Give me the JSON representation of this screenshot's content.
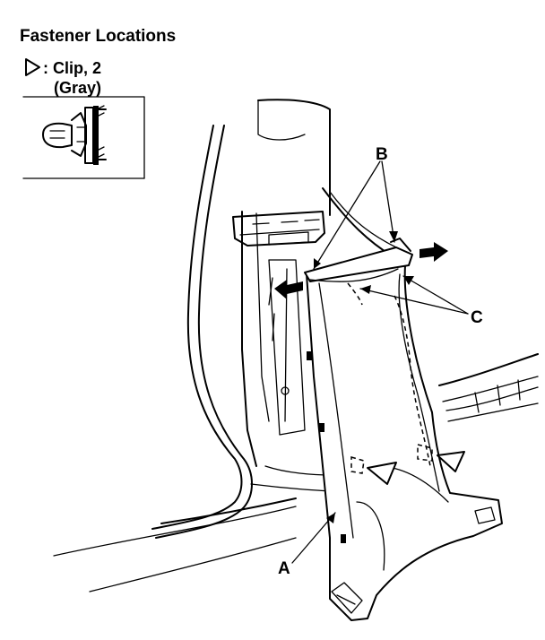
{
  "title": "Fastener Locations",
  "legend": {
    "clip_label": ": Clip, 2",
    "clip_color": "(Gray)"
  },
  "callouts": {
    "a": "A",
    "b": "B",
    "c": "C"
  },
  "icons": {
    "legend_marker": "triangle-outline-icon",
    "removal_arrows": "solid-arrow-icon",
    "clip_detail": "clip-detail-icon"
  }
}
